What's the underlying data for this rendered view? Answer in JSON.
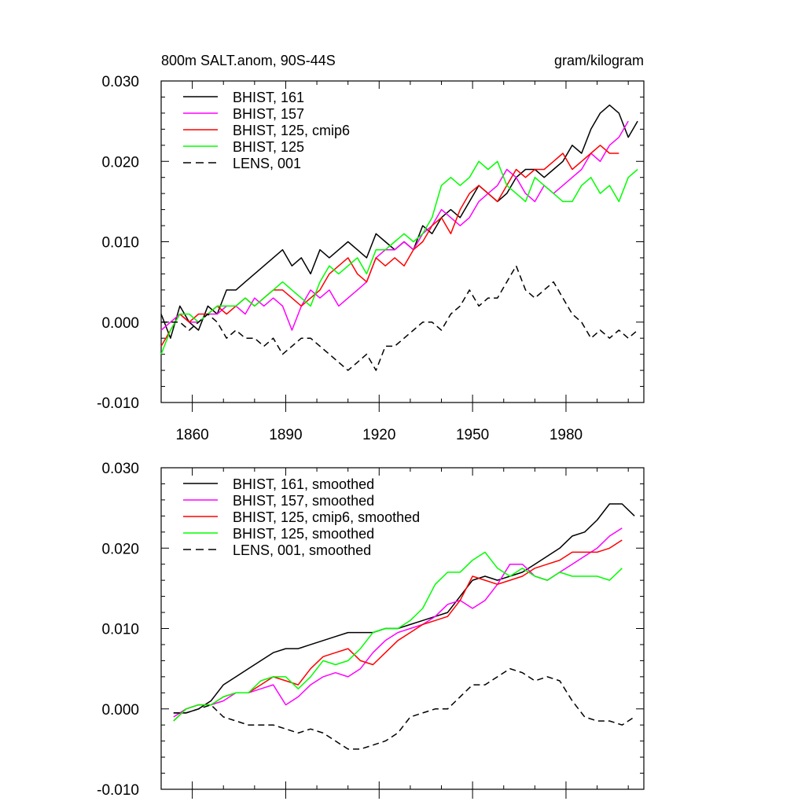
{
  "chart_data": [
    {
      "type": "line",
      "title": "800m SALT.anom, 90S-44S",
      "units": "gram/kilogram",
      "xlim": [
        1850,
        2005
      ],
      "ylim": [
        -0.01,
        0.03
      ],
      "xticks": [
        1860,
        1890,
        1920,
        1950,
        1980
      ],
      "yticks": [
        -0.01,
        0.0,
        0.01,
        0.02,
        0.03
      ],
      "ytick_labels": [
        "-0.010",
        "0.000",
        "0.010",
        "0.020",
        "0.030"
      ],
      "legend": "top-left",
      "series": [
        {
          "name": "BHIST, 161",
          "color": "#000000",
          "dash": "solid",
          "x": [
            1850,
            1853,
            1856,
            1859,
            1862,
            1865,
            1868,
            1871,
            1874,
            1877,
            1880,
            1883,
            1886,
            1889,
            1892,
            1895,
            1898,
            1901,
            1904,
            1907,
            1910,
            1913,
            1916,
            1919,
            1922,
            1925,
            1928,
            1931,
            1934,
            1937,
            1940,
            1943,
            1946,
            1949,
            1952,
            1955,
            1958,
            1961,
            1964,
            1967,
            1970,
            1973,
            1976,
            1979,
            1982,
            1985,
            1988,
            1991,
            1994,
            1997,
            2000,
            2003
          ],
          "y": [
            0.001,
            -0.002,
            0.002,
            0.0,
            -0.001,
            0.002,
            0.001,
            0.004,
            0.004,
            0.005,
            0.006,
            0.007,
            0.008,
            0.009,
            0.007,
            0.008,
            0.006,
            0.009,
            0.008,
            0.009,
            0.01,
            0.009,
            0.008,
            0.011,
            0.01,
            0.009,
            0.01,
            0.009,
            0.012,
            0.011,
            0.013,
            0.014,
            0.013,
            0.015,
            0.017,
            0.016,
            0.015,
            0.016,
            0.018,
            0.019,
            0.019,
            0.018,
            0.019,
            0.02,
            0.022,
            0.021,
            0.024,
            0.026,
            0.027,
            0.026,
            0.023,
            0.025
          ]
        },
        {
          "name": "BHIST, 157",
          "color": "#ff00ff",
          "dash": "solid",
          "x": [
            1850,
            1853,
            1856,
            1859,
            1862,
            1865,
            1868,
            1871,
            1874,
            1877,
            1880,
            1883,
            1886,
            1889,
            1892,
            1895,
            1898,
            1901,
            1904,
            1907,
            1910,
            1913,
            1916,
            1919,
            1922,
            1925,
            1928,
            1931,
            1934,
            1937,
            1940,
            1943,
            1946,
            1949,
            1952,
            1955,
            1958,
            1961,
            1964,
            1967,
            1970,
            1973,
            1976,
            1979,
            1982,
            1985,
            1988,
            1991,
            1994,
            1997,
            2000
          ],
          "y": [
            -0.001,
            0.0,
            0.001,
            0.0,
            0.0,
            0.001,
            0.001,
            0.002,
            0.002,
            0.001,
            0.003,
            0.002,
            0.003,
            0.002,
            -0.001,
            0.002,
            0.004,
            0.003,
            0.004,
            0.002,
            0.003,
            0.004,
            0.005,
            0.008,
            0.009,
            0.009,
            0.01,
            0.009,
            0.011,
            0.012,
            0.014,
            0.013,
            0.012,
            0.013,
            0.015,
            0.016,
            0.017,
            0.019,
            0.018,
            0.016,
            0.015,
            0.017,
            0.016,
            0.017,
            0.018,
            0.019,
            0.021,
            0.02,
            0.022,
            0.023,
            0.025
          ]
        },
        {
          "name": "BHIST, 125, cmip6",
          "color": "#ff0000",
          "dash": "solid",
          "x": [
            1850,
            1853,
            1856,
            1859,
            1862,
            1865,
            1868,
            1871,
            1874,
            1877,
            1880,
            1883,
            1886,
            1889,
            1892,
            1895,
            1898,
            1901,
            1904,
            1907,
            1910,
            1913,
            1916,
            1919,
            1922,
            1925,
            1928,
            1931,
            1934,
            1937,
            1940,
            1943,
            1946,
            1949,
            1952,
            1955,
            1958,
            1961,
            1964,
            1967,
            1970,
            1973,
            1976,
            1979,
            1982,
            1985,
            1988,
            1991,
            1994,
            1997
          ],
          "y": [
            -0.003,
            -0.001,
            0.001,
            0.0,
            0.001,
            0.001,
            0.002,
            0.001,
            0.002,
            0.003,
            0.002,
            0.003,
            0.004,
            0.004,
            0.003,
            0.002,
            0.003,
            0.004,
            0.006,
            0.007,
            0.008,
            0.006,
            0.005,
            0.008,
            0.007,
            0.008,
            0.007,
            0.009,
            0.01,
            0.012,
            0.013,
            0.011,
            0.014,
            0.016,
            0.017,
            0.016,
            0.015,
            0.017,
            0.019,
            0.018,
            0.019,
            0.019,
            0.02,
            0.021,
            0.019,
            0.02,
            0.021,
            0.022,
            0.021,
            0.021
          ]
        },
        {
          "name": "BHIST, 125",
          "color": "#00ff00",
          "dash": "solid",
          "x": [
            1850,
            1853,
            1856,
            1859,
            1862,
            1865,
            1868,
            1871,
            1874,
            1877,
            1880,
            1883,
            1886,
            1889,
            1892,
            1895,
            1898,
            1901,
            1904,
            1907,
            1910,
            1913,
            1916,
            1919,
            1922,
            1925,
            1928,
            1931,
            1934,
            1937,
            1940,
            1943,
            1946,
            1949,
            1952,
            1955,
            1958,
            1961,
            1964,
            1967,
            1970,
            1973,
            1976,
            1979,
            1982,
            1985,
            1988,
            1991,
            1994,
            1997,
            2000,
            2003
          ],
          "y": [
            -0.004,
            -0.001,
            0.001,
            0.001,
            0.0,
            0.001,
            0.002,
            0.002,
            0.002,
            0.003,
            0.002,
            0.003,
            0.004,
            0.005,
            0.004,
            0.003,
            0.002,
            0.005,
            0.007,
            0.006,
            0.007,
            0.008,
            0.006,
            0.009,
            0.009,
            0.01,
            0.011,
            0.01,
            0.011,
            0.013,
            0.017,
            0.018,
            0.017,
            0.018,
            0.02,
            0.019,
            0.02,
            0.017,
            0.016,
            0.015,
            0.018,
            0.017,
            0.016,
            0.015,
            0.015,
            0.017,
            0.018,
            0.016,
            0.017,
            0.015,
            0.018,
            0.019
          ]
        },
        {
          "name": "LENS, 001",
          "color": "#000000",
          "dash": "dashed",
          "x": [
            1850,
            1853,
            1856,
            1859,
            1862,
            1865,
            1868,
            1871,
            1874,
            1877,
            1880,
            1883,
            1886,
            1889,
            1892,
            1895,
            1898,
            1901,
            1904,
            1907,
            1910,
            1913,
            1916,
            1919,
            1922,
            1925,
            1928,
            1931,
            1934,
            1937,
            1940,
            1943,
            1946,
            1949,
            1952,
            1955,
            1958,
            1961,
            1964,
            1967,
            1970,
            1973,
            1976,
            1979,
            1982,
            1985,
            1988,
            1991,
            1994,
            1997,
            2000,
            2003
          ],
          "y": [
            0.0,
            0.0,
            0.0,
            -0.001,
            0.0,
            0.001,
            0.0,
            -0.002,
            -0.001,
            -0.002,
            -0.002,
            -0.003,
            -0.002,
            -0.004,
            -0.003,
            -0.002,
            -0.002,
            -0.003,
            -0.004,
            -0.005,
            -0.006,
            -0.005,
            -0.004,
            -0.006,
            -0.003,
            -0.003,
            -0.002,
            -0.001,
            0.0,
            0.0,
            -0.001,
            0.001,
            0.002,
            0.004,
            0.002,
            0.003,
            0.003,
            0.005,
            0.007,
            0.004,
            0.003,
            0.004,
            0.005,
            0.003,
            0.001,
            0.0,
            -0.002,
            -0.001,
            -0.002,
            -0.001,
            -0.002,
            -0.001
          ]
        }
      ]
    },
    {
      "type": "line",
      "title": "",
      "xlim": [
        1850,
        2005
      ],
      "ylim": [
        -0.01,
        0.03
      ],
      "xticks": [
        1860,
        1890,
        1920,
        1950,
        1980
      ],
      "yticks": [
        -0.01,
        0.0,
        0.01,
        0.02,
        0.03
      ],
      "ytick_labels": [
        "-0.010",
        "0.000",
        "0.010",
        "0.020",
        "0.030"
      ],
      "legend": "top-left",
      "series": [
        {
          "name": "BHIST, 161, smoothed",
          "color": "#000000",
          "dash": "solid",
          "x": [
            1854,
            1858,
            1862,
            1866,
            1870,
            1874,
            1878,
            1882,
            1886,
            1890,
            1894,
            1898,
            1902,
            1906,
            1910,
            1914,
            1918,
            1922,
            1926,
            1930,
            1934,
            1938,
            1942,
            1946,
            1950,
            1954,
            1958,
            1962,
            1966,
            1970,
            1974,
            1978,
            1982,
            1986,
            1990,
            1994,
            1998,
            2002
          ],
          "y": [
            -0.0005,
            -0.0005,
            0.0,
            0.001,
            0.003,
            0.004,
            0.005,
            0.006,
            0.007,
            0.0075,
            0.0075,
            0.008,
            0.0085,
            0.009,
            0.0095,
            0.0095,
            0.0095,
            0.01,
            0.01,
            0.0105,
            0.011,
            0.0115,
            0.012,
            0.014,
            0.016,
            0.0165,
            0.016,
            0.0165,
            0.017,
            0.018,
            0.019,
            0.02,
            0.0215,
            0.022,
            0.0235,
            0.0255,
            0.0255,
            0.024
          ]
        },
        {
          "name": "BHIST, 157, smoothed",
          "color": "#ff00ff",
          "dash": "solid",
          "x": [
            1854,
            1858,
            1862,
            1866,
            1870,
            1874,
            1878,
            1882,
            1886,
            1890,
            1894,
            1898,
            1902,
            1906,
            1910,
            1914,
            1918,
            1922,
            1926,
            1930,
            1934,
            1938,
            1942,
            1946,
            1950,
            1954,
            1958,
            1962,
            1966,
            1970,
            1974,
            1978,
            1982,
            1986,
            1990,
            1994,
            1998
          ],
          "y": [
            -0.001,
            0.0,
            0.0005,
            0.0005,
            0.001,
            0.002,
            0.002,
            0.0025,
            0.003,
            0.0005,
            0.0015,
            0.003,
            0.004,
            0.0045,
            0.004,
            0.005,
            0.007,
            0.0085,
            0.0095,
            0.01,
            0.0105,
            0.0115,
            0.013,
            0.0135,
            0.0125,
            0.0135,
            0.0155,
            0.018,
            0.018,
            0.0165,
            0.016,
            0.017,
            0.018,
            0.019,
            0.02,
            0.0215,
            0.0225
          ]
        },
        {
          "name": "BHIST, 125, cmip6, smoothed",
          "color": "#ff0000",
          "dash": "solid",
          "x": [
            1854,
            1858,
            1862,
            1866,
            1870,
            1874,
            1878,
            1882,
            1886,
            1890,
            1894,
            1898,
            1902,
            1906,
            1910,
            1914,
            1918,
            1922,
            1926,
            1930,
            1934,
            1938,
            1942,
            1946,
            1950,
            1954,
            1958,
            1962,
            1966,
            1970,
            1974,
            1978,
            1982,
            1986,
            1990,
            1994,
            1998
          ],
          "y": [
            -0.0015,
            0.0,
            0.0005,
            0.0005,
            0.0015,
            0.002,
            0.002,
            0.003,
            0.004,
            0.0035,
            0.003,
            0.005,
            0.0065,
            0.007,
            0.0075,
            0.006,
            0.0055,
            0.007,
            0.0085,
            0.0095,
            0.0105,
            0.011,
            0.0115,
            0.0135,
            0.0165,
            0.016,
            0.0155,
            0.016,
            0.0165,
            0.0175,
            0.018,
            0.0185,
            0.0195,
            0.0195,
            0.0195,
            0.02,
            0.021
          ]
        },
        {
          "name": "BHIST, 125, smoothed",
          "color": "#00ff00",
          "dash": "solid",
          "x": [
            1854,
            1858,
            1862,
            1866,
            1870,
            1874,
            1878,
            1882,
            1886,
            1890,
            1894,
            1898,
            1902,
            1906,
            1910,
            1914,
            1918,
            1922,
            1926,
            1930,
            1934,
            1938,
            1942,
            1946,
            1950,
            1954,
            1958,
            1962,
            1966,
            1970,
            1974,
            1978,
            1982,
            1986,
            1990,
            1994,
            1998
          ],
          "y": [
            -0.0015,
            0.0,
            0.0005,
            0.0005,
            0.0015,
            0.002,
            0.002,
            0.0035,
            0.004,
            0.004,
            0.0025,
            0.004,
            0.006,
            0.0055,
            0.006,
            0.0075,
            0.0095,
            0.01,
            0.01,
            0.011,
            0.0125,
            0.0155,
            0.017,
            0.017,
            0.0185,
            0.0195,
            0.0175,
            0.0165,
            0.0175,
            0.0165,
            0.016,
            0.017,
            0.0165,
            0.0165,
            0.0165,
            0.016,
            0.0175
          ]
        },
        {
          "name": "LENS, 001, smoothed",
          "color": "#000000",
          "dash": "dashed",
          "x": [
            1854,
            1858,
            1862,
            1866,
            1870,
            1874,
            1878,
            1882,
            1886,
            1890,
            1894,
            1898,
            1902,
            1906,
            1910,
            1914,
            1918,
            1922,
            1926,
            1930,
            1934,
            1938,
            1942,
            1946,
            1950,
            1954,
            1958,
            1962,
            1966,
            1970,
            1974,
            1978,
            1982,
            1986,
            1990,
            1994,
            1998,
            2002
          ],
          "y": [
            -0.0005,
            -0.0005,
            0.0,
            0.0005,
            -0.001,
            -0.0015,
            -0.002,
            -0.002,
            -0.002,
            -0.0025,
            -0.003,
            -0.0025,
            -0.003,
            -0.004,
            -0.005,
            -0.005,
            -0.0045,
            -0.004,
            -0.003,
            -0.001,
            -0.0005,
            0.0,
            0.0,
            0.0015,
            0.003,
            0.003,
            0.004,
            0.005,
            0.0045,
            0.0035,
            0.004,
            0.0035,
            0.001,
            -0.001,
            -0.0015,
            -0.0015,
            -0.002,
            -0.001
          ]
        }
      ]
    }
  ]
}
